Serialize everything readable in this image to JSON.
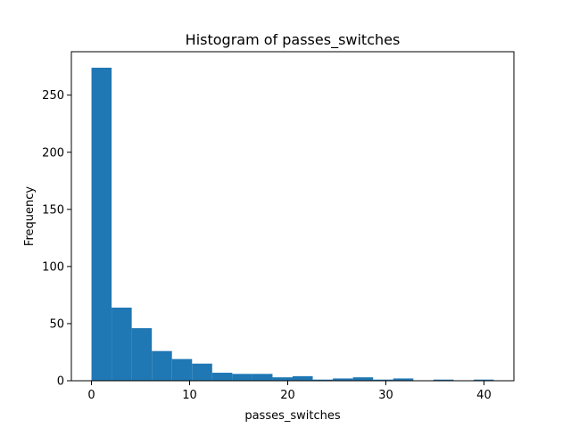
{
  "chart_data": {
    "type": "bar",
    "title": "Histogram of passes_switches",
    "xlabel": "passes_switches",
    "ylabel": "Frequency",
    "xlim": [
      -2.05,
      43.05
    ],
    "ylim": [
      0,
      288
    ],
    "x_ticks": [
      0,
      10,
      20,
      30,
      40
    ],
    "y_ticks": [
      0,
      50,
      100,
      150,
      200,
      250
    ],
    "bin_edges": [
      0,
      2.05,
      4.1,
      6.15,
      8.2,
      10.25,
      12.3,
      14.35,
      16.4,
      18.45,
      20.5,
      22.55,
      24.6,
      26.65,
      28.7,
      30.75,
      32.8,
      34.85,
      36.9,
      38.95,
      41
    ],
    "values": [
      274,
      64,
      46,
      26,
      19,
      15,
      7,
      6,
      6,
      3,
      4,
      1,
      2,
      3,
      1,
      2,
      0,
      1,
      0,
      1
    ],
    "bar_color": "#1f77b4",
    "grid": false,
    "legend": false
  }
}
